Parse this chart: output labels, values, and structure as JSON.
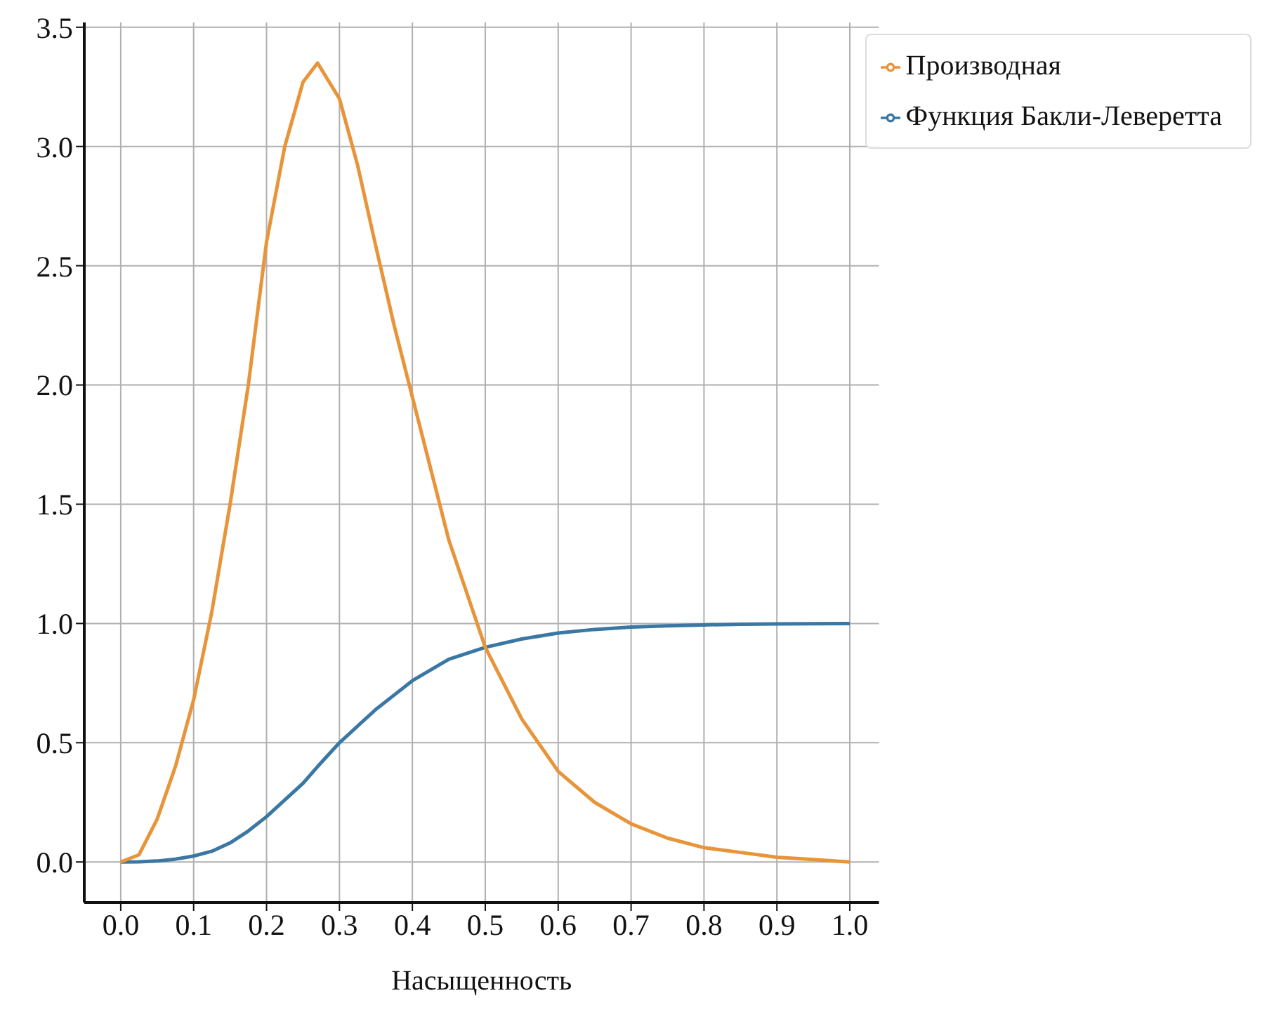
{
  "chart_data": {
    "type": "line",
    "xlabel": "Насыщенность",
    "x": [
      0,
      0.025,
      0.05,
      0.075,
      0.1,
      0.125,
      0.15,
      0.175,
      0.2,
      0.225,
      0.25,
      0.27,
      0.3,
      0.325,
      0.35,
      0.375,
      0.4,
      0.45,
      0.5,
      0.55,
      0.6,
      0.65,
      0.7,
      0.75,
      0.8,
      0.85,
      0.9,
      0.95,
      1.0
    ],
    "series": [
      {
        "name": "Функция Бакли-Леверетта",
        "color": "#3a77a3",
        "values": [
          0,
          0.001,
          0.004,
          0.012,
          0.025,
          0.045,
          0.08,
          0.13,
          0.19,
          0.26,
          0.33,
          0.4,
          0.5,
          0.57,
          0.64,
          0.7,
          0.76,
          0.85,
          0.9,
          0.935,
          0.96,
          0.975,
          0.985,
          0.99,
          0.994,
          0.997,
          0.998,
          0.999,
          1.0
        ]
      },
      {
        "name": "Производная",
        "color": "#e8943a",
        "values": [
          0,
          0.03,
          0.18,
          0.4,
          0.68,
          1.05,
          1.5,
          2.0,
          2.6,
          3.0,
          3.27,
          3.35,
          3.2,
          2.92,
          2.58,
          2.25,
          1.95,
          1.35,
          0.9,
          0.6,
          0.38,
          0.25,
          0.16,
          0.1,
          0.06,
          0.04,
          0.02,
          0.01,
          0.0
        ]
      }
    ],
    "xlim": [
      -0.05,
      1.04
    ],
    "ylim": [
      -0.17,
      3.52
    ],
    "xticks": [
      {
        "value": 0,
        "label": "0.0"
      },
      0.1,
      0.2,
      0.3,
      0.4,
      0.5,
      0.6,
      0.7,
      0.8,
      0.9,
      {
        "value": 1,
        "label": "1.0"
      }
    ],
    "yticks": [
      {
        "value": 0,
        "label": "0.0"
      },
      0.5,
      {
        "value": 1,
        "label": "1.0"
      },
      1.5,
      {
        "value": 2,
        "label": "2.0"
      },
      2.5,
      {
        "value": 3,
        "label": "3.0"
      },
      3.5
    ],
    "grid": true,
    "legend": "top right",
    "marker": "none",
    "line_style": "solid"
  }
}
